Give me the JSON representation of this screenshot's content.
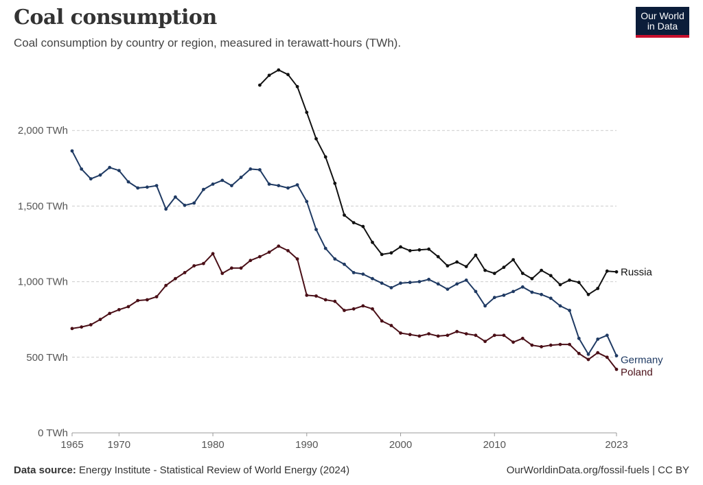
{
  "header": {
    "title": "Coal consumption",
    "subtitle": "Coal consumption by country or region, measured in terawatt-hours (TWh).",
    "logo_line1": "Our World",
    "logo_line2": "in Data"
  },
  "footer": {
    "source_label": "Data source:",
    "source_text": "Energy Institute - Statistical Review of World Energy (2024)",
    "right_text": "OurWorldinData.org/fossil-fuels | CC BY"
  },
  "colors": {
    "Russia": "#111111",
    "Germany": "#1f3a63",
    "Poland": "#4a0f17",
    "grid": "#cccccc"
  },
  "chart_data": {
    "type": "line",
    "title": "Coal consumption",
    "xlim": [
      1965,
      2023
    ],
    "ylim": [
      0,
      2400
    ],
    "y_ticks": [
      0,
      500,
      1000,
      1500,
      2000
    ],
    "y_tick_labels": [
      "0 TWh",
      "500 TWh",
      "1,000 TWh",
      "1,500 TWh",
      "2,000 TWh"
    ],
    "x_ticks": [
      1965,
      1970,
      1980,
      1990,
      2000,
      2010,
      2023
    ],
    "x_tick_labels": [
      "1965",
      "1970",
      "1980",
      "1990",
      "2000",
      "2010",
      "2023"
    ],
    "grid": "horizontal dashed",
    "legend": "labels at line ends",
    "series": [
      {
        "name": "Russia",
        "x": [
          1985,
          1986,
          1987,
          1988,
          1989,
          1990,
          1991,
          1992,
          1993,
          1994,
          1995,
          1996,
          1997,
          1998,
          1999,
          2000,
          2001,
          2002,
          2003,
          2004,
          2005,
          2006,
          2007,
          2008,
          2009,
          2010,
          2011,
          2012,
          2013,
          2014,
          2015,
          2016,
          2017,
          2018,
          2019,
          2020,
          2021,
          2022,
          2023
        ],
        "values": [
          2300,
          2365,
          2400,
          2370,
          2290,
          2120,
          1945,
          1825,
          1650,
          1440,
          1390,
          1365,
          1260,
          1180,
          1190,
          1230,
          1205,
          1210,
          1215,
          1165,
          1105,
          1130,
          1100,
          1175,
          1075,
          1055,
          1095,
          1145,
          1055,
          1020,
          1075,
          1040,
          980,
          1010,
          995,
          915,
          955,
          1070,
          1065
        ]
      },
      {
        "name": "Germany",
        "x": [
          1965,
          1966,
          1967,
          1968,
          1969,
          1970,
          1971,
          1972,
          1973,
          1974,
          1975,
          1976,
          1977,
          1978,
          1979,
          1980,
          1981,
          1982,
          1983,
          1984,
          1985,
          1986,
          1987,
          1988,
          1989,
          1990,
          1991,
          1992,
          1993,
          1994,
          1995,
          1996,
          1997,
          1998,
          1999,
          2000,
          2001,
          2002,
          2003,
          2004,
          2005,
          2006,
          2007,
          2008,
          2009,
          2010,
          2011,
          2012,
          2013,
          2014,
          2015,
          2016,
          2017,
          2018,
          2019,
          2020,
          2021,
          2022,
          2023
        ],
        "values": [
          1865,
          1745,
          1680,
          1705,
          1755,
          1735,
          1660,
          1620,
          1625,
          1635,
          1480,
          1560,
          1505,
          1520,
          1610,
          1645,
          1670,
          1635,
          1690,
          1745,
          1740,
          1645,
          1635,
          1620,
          1640,
          1530,
          1345,
          1220,
          1150,
          1115,
          1060,
          1050,
          1020,
          990,
          960,
          990,
          995,
          1000,
          1015,
          985,
          950,
          985,
          1010,
          935,
          840,
          895,
          910,
          935,
          965,
          930,
          915,
          890,
          840,
          810,
          625,
          520,
          620,
          645,
          510
        ]
      },
      {
        "name": "Poland",
        "x": [
          1965,
          1966,
          1967,
          1968,
          1969,
          1970,
          1971,
          1972,
          1973,
          1974,
          1975,
          1976,
          1977,
          1978,
          1979,
          1980,
          1981,
          1982,
          1983,
          1984,
          1985,
          1986,
          1987,
          1988,
          1989,
          1990,
          1991,
          1992,
          1993,
          1994,
          1995,
          1996,
          1997,
          1998,
          1999,
          2000,
          2001,
          2002,
          2003,
          2004,
          2005,
          2006,
          2007,
          2008,
          2009,
          2010,
          2011,
          2012,
          2013,
          2014,
          2015,
          2016,
          2017,
          2018,
          2019,
          2020,
          2021,
          2022,
          2023
        ],
        "values": [
          690,
          700,
          715,
          750,
          790,
          815,
          835,
          875,
          880,
          900,
          975,
          1020,
          1060,
          1105,
          1120,
          1185,
          1055,
          1090,
          1090,
          1140,
          1165,
          1195,
          1235,
          1205,
          1150,
          910,
          905,
          880,
          870,
          810,
          820,
          840,
          820,
          740,
          710,
          660,
          650,
          640,
          655,
          640,
          645,
          670,
          655,
          645,
          605,
          645,
          645,
          600,
          625,
          580,
          570,
          580,
          585,
          585,
          525,
          485,
          530,
          500,
          420
        ]
      }
    ]
  }
}
